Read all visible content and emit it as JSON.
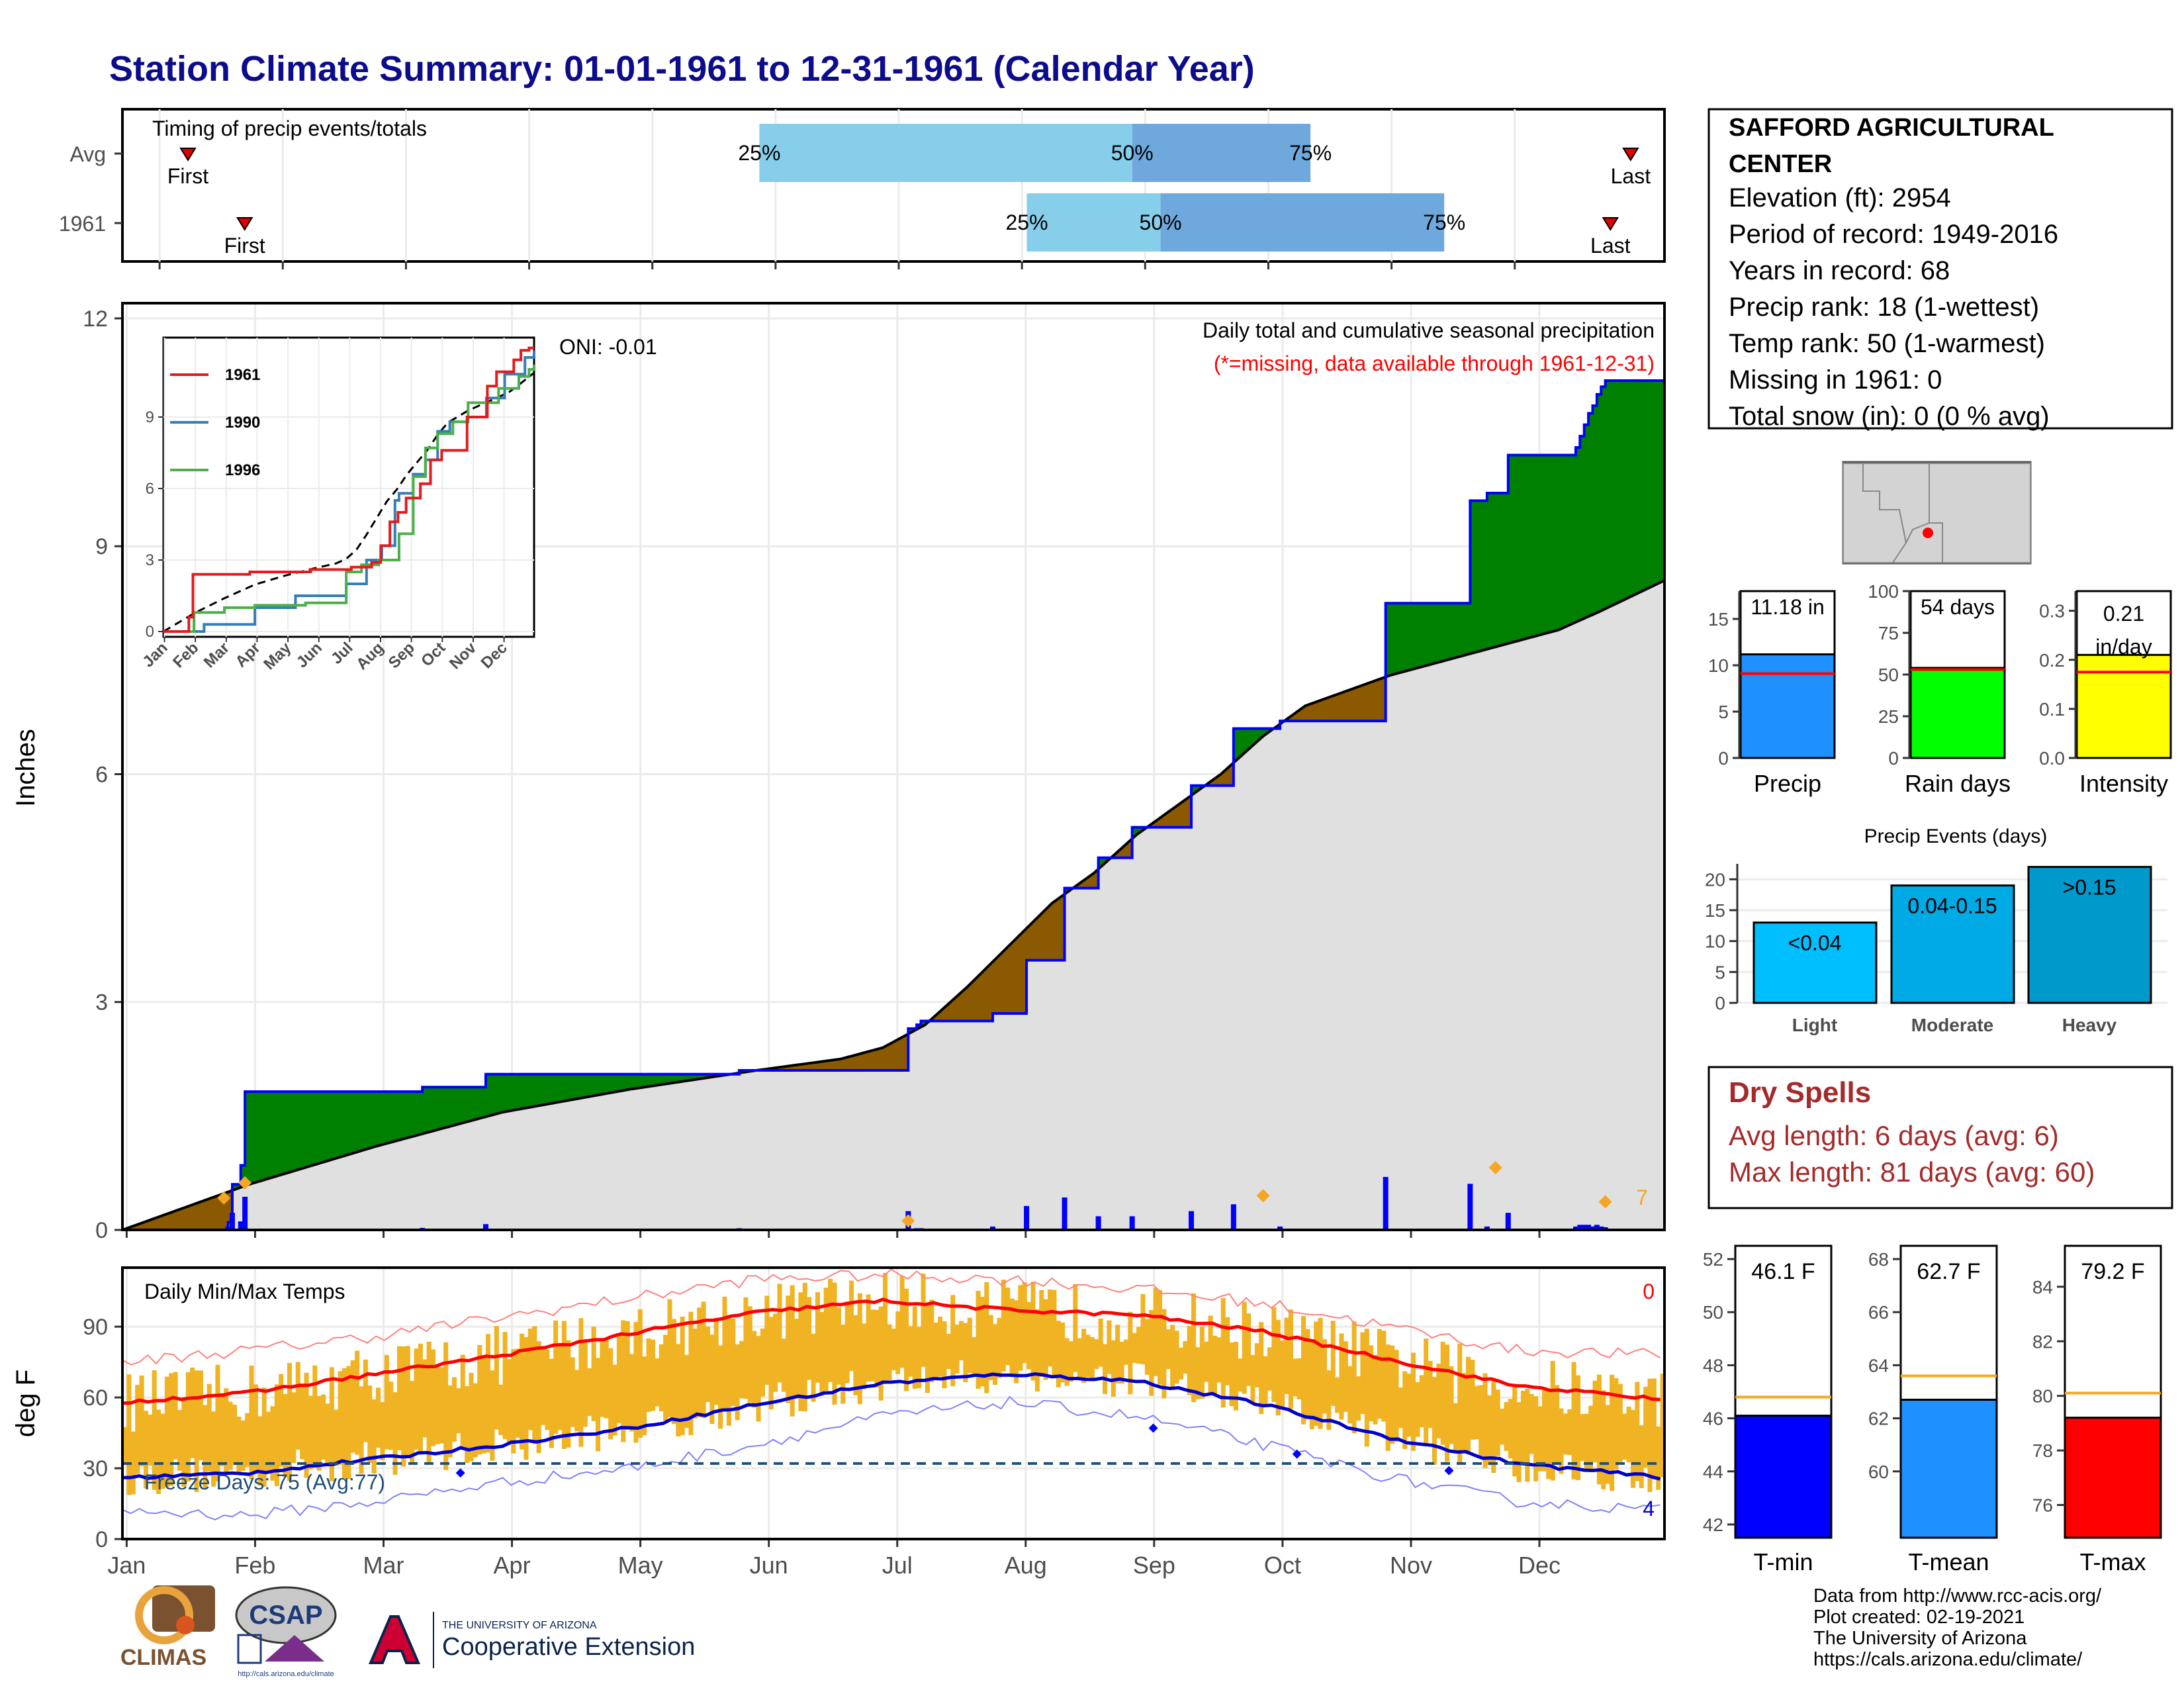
{
  "title": "Station Climate Summary: 01-01-1961 to 12-31-1961 (Calendar Year)",
  "colors": {
    "title": "#0c0c8c",
    "blue_line": "#0000ff",
    "green_fill": "#008000",
    "brown_fill": "#8b5a00",
    "gray_fill": "#e0e0e0",
    "orange": "#f5a623",
    "bar_q1": "#87ceeb",
    "bar_q2": "#6fa8dc",
    "red": "#ff0000",
    "dry_spell": "#a52a2a"
  },
  "timing": {
    "label": "Timing of precip events/totals",
    "rows": [
      {
        "name": "Avg",
        "first_label": "First",
        "last_label": "Last",
        "first_day": 8,
        "last_day": 364,
        "q25_day": 149,
        "q50_day": 241,
        "q75_day": 285,
        "q25_label": "25%",
        "q50_label": "50%",
        "q75_label": "75%"
      },
      {
        "name": "1961",
        "first_label": "First",
        "last_label": "Last",
        "first_day": 22,
        "last_day": 359,
        "q25_day": 215,
        "q50_day": 248,
        "q75_day": 318,
        "q25_label": "25%",
        "q50_label": "50%",
        "q75_label": "75%"
      }
    ]
  },
  "main_plot": {
    "ylabel": "Inches",
    "annotation_title": "Daily total and cumulative seasonal precipitation",
    "annotation_missing": "(*=missing, data available through 1961-12-31)",
    "oni": "ONI: -0.01",
    "count_label": "7",
    "y_ticks": [
      "0",
      "3",
      "6",
      "9",
      "12"
    ]
  },
  "inset": {
    "legend": [
      "1961",
      "1990",
      "1996"
    ],
    "legend_colors": [
      "#e41a1c",
      "#377eb8",
      "#4daf4a"
    ],
    "y_ticks": [
      "0",
      "3",
      "6",
      "9"
    ],
    "x_ticks": [
      "Jan",
      "Feb",
      "Mar",
      "Apr",
      "May",
      "Jun",
      "Jul",
      "Aug",
      "Sep",
      "Oct",
      "Nov",
      "Dec"
    ]
  },
  "temp_plot": {
    "ylabel": "deg F",
    "label": "Daily Min/Max Temps",
    "freeze_label": "Freeze Days: 75 (Avg:77)",
    "hot_count": "0",
    "cold_count": "4",
    "y_ticks": [
      "0",
      "30",
      "60",
      "90"
    ],
    "x_ticks": [
      "Jan",
      "Feb",
      "Mar",
      "Apr",
      "May",
      "Jun",
      "Jul",
      "Aug",
      "Sep",
      "Oct",
      "Nov",
      "Dec"
    ]
  },
  "station": {
    "name_line1": "SAFFORD AGRICULTURAL",
    "name_line2": "CENTER",
    "elevation": "Elevation (ft): 2954",
    "period": "Period of record: 1949-2016",
    "years": "Years in record: 68",
    "precip_rank": "Precip rank: 18 (1-wettest)",
    "temp_rank": "Temp rank: 50 (1-warmest)",
    "missing": "Missing in 1961: 0",
    "snow": "Total snow (in): 0 (0 % avg)"
  },
  "mini_bars": [
    {
      "label": "Precip",
      "value_label": "11.18 in",
      "value": 11.18,
      "avg": 9.1,
      "ymax": 18,
      "ticks": [
        "0",
        "5",
        "10",
        "15"
      ],
      "color": "#1e90ff"
    },
    {
      "label": "Rain days",
      "value_label": "54 days",
      "value": 54,
      "avg": 53,
      "ymax": 100,
      "ticks": [
        "0",
        "25",
        "50",
        "75",
        "100"
      ],
      "color": "#00ff00"
    },
    {
      "label": "Intensity",
      "value_label": "0.21 in/day",
      "value": 0.21,
      "avg": 0.175,
      "ymax": 0.34,
      "ticks": [
        "0.0",
        "0.1",
        "0.2",
        "0.3"
      ],
      "color": "#ffff00"
    }
  ],
  "precip_events": {
    "title": "Precip Events (days)",
    "categories": [
      "Light",
      "Moderate",
      "Heavy"
    ],
    "values": [
      13,
      19,
      22
    ],
    "labels": [
      "<0.04",
      "0.04-0.15",
      ">0.15"
    ],
    "ticks": [
      "0",
      "5",
      "10",
      "15",
      "20"
    ],
    "colors": [
      "#00bfff",
      "#00aae4",
      "#0099cc"
    ]
  },
  "dry_spells": {
    "title": "Dry Spells",
    "avg": "Avg length: 6 days (avg: 6)",
    "max": "Max length: 81 days (avg: 60)"
  },
  "temp_bars": [
    {
      "label": "T-min",
      "value_label": "46.1 F",
      "value": 46.1,
      "avg": 46.8,
      "ymin": 41.5,
      "ymax": 52.5,
      "ticks": [
        "42",
        "44",
        "46",
        "48",
        "50",
        "52"
      ],
      "color": "#0000ff"
    },
    {
      "label": "T-mean",
      "value_label": "62.7 F",
      "value": 62.7,
      "avg": 63.6,
      "ymin": 57.5,
      "ymax": 68.5,
      "ticks": [
        "60",
        "62",
        "64",
        "66",
        "68"
      ],
      "color": "#1e90ff"
    },
    {
      "label": "T-max",
      "value_label": "79.2 F",
      "value": 79.2,
      "avg": 80.1,
      "ymin": 74.8,
      "ymax": 85.5,
      "ticks": [
        "76",
        "78",
        "80",
        "82",
        "84"
      ],
      "color": "#ff0000"
    }
  ],
  "footer": {
    "line1": "Data from http://www.rcc-acis.org/",
    "line2": "Plot created: 02-19-2021",
    "line3": "The University of Arizona",
    "line4": "https://cals.arizona.edu/climate/",
    "climas": "CLIMAS",
    "csap": "CSAP",
    "ua_small": "THE UNIVERSITY OF ARIZONA",
    "ua_big": "Cooperative Extension",
    "csap_url": "http://cals.arizona.edu/climate"
  },
  "chart_data": [
    {
      "type": "area",
      "title": "Daily total and cumulative seasonal precipitation",
      "ylabel": "Inches",
      "ylim": [
        0,
        12.2
      ],
      "xlim_days": [
        0,
        365
      ],
      "series": [
        {
          "name": "1961",
          "x_day": [
            0,
            25,
            26,
            28,
            29,
            70,
            71,
            85,
            86,
            145,
            146,
            185,
            186,
            188,
            189,
            205,
            206,
            213,
            214,
            222,
            223,
            230,
            231,
            238,
            239,
            252,
            253,
            262,
            263,
            273,
            274,
            298,
            299,
            318,
            319,
            322,
            323,
            327,
            328,
            343,
            344,
            345,
            346,
            347,
            348,
            349,
            350,
            351,
            352,
            365
          ],
          "cumulative": [
            0,
            0.1,
            0.6,
            0.85,
            1.82,
            1.82,
            1.88,
            1.88,
            2.05,
            2.05,
            2.1,
            2.1,
            2.65,
            2.7,
            2.75,
            2.75,
            2.85,
            2.85,
            3.55,
            3.55,
            4.5,
            4.5,
            4.9,
            4.9,
            5.3,
            5.3,
            5.85,
            5.85,
            6.6,
            6.6,
            6.7,
            6.7,
            8.25,
            8.25,
            9.6,
            9.6,
            9.7,
            9.7,
            10.2,
            10.2,
            10.3,
            10.45,
            10.6,
            10.75,
            10.85,
            11.0,
            11.1,
            11.18,
            11.18,
            11.18
          ]
        },
        {
          "name": "Average",
          "x_day": [
            0,
            30,
            60,
            90,
            120,
            150,
            170,
            180,
            190,
            200,
            210,
            220,
            230,
            240,
            250,
            260,
            270,
            280,
            290,
            300,
            310,
            320,
            330,
            340,
            350,
            365
          ],
          "cumulative": [
            0,
            0.6,
            1.1,
            1.55,
            1.85,
            2.1,
            2.25,
            2.4,
            2.7,
            3.2,
            3.75,
            4.3,
            4.7,
            5.2,
            5.6,
            6.0,
            6.5,
            6.9,
            7.1,
            7.3,
            7.45,
            7.6,
            7.75,
            7.9,
            8.15,
            8.55
          ]
        }
      ]
    },
    {
      "type": "line",
      "title": "Daily Min/Max Temps",
      "ylabel": "deg F",
      "ylim": [
        0,
        115
      ],
      "series": [
        {
          "name": "Avg max",
          "x_day": [
            0,
            30,
            60,
            90,
            120,
            150,
            180,
            210,
            240,
            270,
            300,
            330,
            365
          ],
          "values": [
            58,
            62,
            70,
            78,
            87,
            96,
            101,
            97,
            95,
            88,
            76,
            65,
            59
          ]
        },
        {
          "name": "Avg min",
          "x_day": [
            0,
            30,
            60,
            90,
            120,
            150,
            180,
            210,
            240,
            270,
            300,
            330,
            365
          ],
          "values": [
            26,
            28,
            34,
            40,
            47,
            57,
            66,
            70,
            67,
            57,
            43,
            32,
            26
          ]
        },
        {
          "name": "Record max",
          "x_day": [
            0,
            30,
            60,
            90,
            120,
            150,
            180,
            210,
            240,
            270,
            300,
            330,
            365
          ],
          "values": [
            75,
            80,
            86,
            94,
            102,
            110,
            112,
            110,
            106,
            100,
            90,
            80,
            78
          ]
        },
        {
          "name": "Record min",
          "x_day": [
            0,
            30,
            60,
            90,
            120,
            150,
            180,
            210,
            240,
            270,
            300,
            330,
            365
          ],
          "values": [
            12,
            10,
            16,
            24,
            30,
            40,
            52,
            58,
            52,
            40,
            26,
            16,
            12
          ]
        },
        {
          "name": "Freeze threshold",
          "x_day": [
            0,
            365
          ],
          "values": [
            32,
            32
          ]
        }
      ]
    },
    {
      "type": "bar",
      "title": "Precip Events (days)",
      "categories": [
        "Light",
        "Moderate",
        "Heavy"
      ],
      "values": [
        13,
        19,
        22
      ]
    },
    {
      "type": "bar",
      "categories": [
        "Precip",
        "Rain days",
        "Intensity"
      ],
      "series": [
        {
          "name": "1961",
          "values": [
            11.18,
            54,
            0.21
          ]
        }
      ]
    },
    {
      "type": "bar",
      "categories": [
        "T-min",
        "T-mean",
        "T-max"
      ],
      "series": [
        {
          "name": "1961",
          "values": [
            46.1,
            62.7,
            79.2
          ]
        }
      ]
    }
  ]
}
